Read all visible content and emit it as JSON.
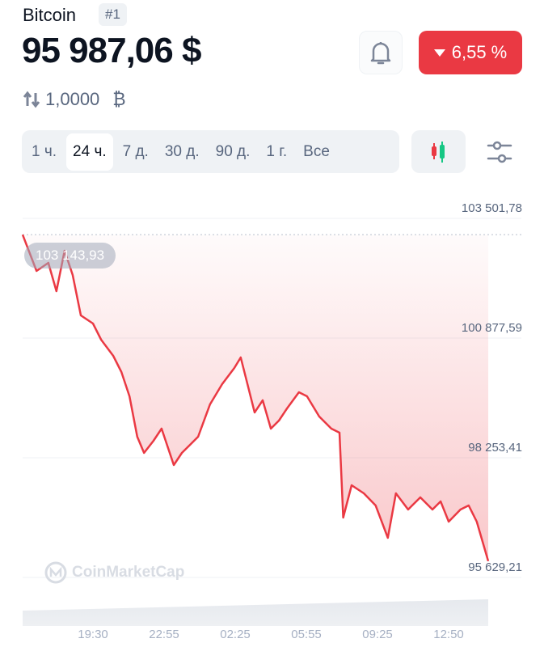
{
  "header": {
    "coin_name": "Bitcoin",
    "rank": "#1",
    "price": "95 987,06 $",
    "change": "6,55 %",
    "change_direction": "down",
    "conversion": "1,0000",
    "conversion_symbol": "₿"
  },
  "tabs": [
    {
      "label": "1 ч.",
      "active": false
    },
    {
      "label": "24 ч.",
      "active": true
    },
    {
      "label": "7 д.",
      "active": false
    },
    {
      "label": "30 д.",
      "active": false
    },
    {
      "label": "90 д.",
      "active": false
    },
    {
      "label": "1 г.",
      "active": false
    },
    {
      "label": "Все",
      "active": false
    }
  ],
  "icons": {
    "bell": "bell-icon",
    "candles": "candlestick-icon",
    "settings": "sliders-icon",
    "convert": "swap-arrows-icon"
  },
  "colors": {
    "down": "#ea3943",
    "up": "#16c784"
  },
  "watermark": "CoinMarketCap",
  "chart_data": {
    "type": "area",
    "start_label": "103 143,93",
    "ylim": [
      95629.21,
      103501.78
    ],
    "y_ticks": [
      {
        "v": 103501.78,
        "label": "103 501,78"
      },
      {
        "v": 100877.59,
        "label": "100 877,59"
      },
      {
        "v": 98253.41,
        "label": "98 253,41"
      },
      {
        "v": 95629.21,
        "label": "95 629,21"
      }
    ],
    "x_ticks": [
      "19:30",
      "22:55",
      "02:25",
      "05:55",
      "09:25",
      "12:50"
    ],
    "grid": true,
    "series": [
      {
        "x": [
          "16:02",
          "16:43",
          "17:18",
          "17:42",
          "18:06",
          "18:30",
          "18:54",
          "19:30",
          "19:54",
          "20:30",
          "20:54",
          "21:18",
          "21:41",
          "22:01",
          "22:29",
          "22:53",
          "23:29",
          "23:53",
          "00:17",
          "00:41",
          "01:16",
          "01:52",
          "02:28",
          "02:47",
          "03:04",
          "03:28",
          "03:52",
          "04:16",
          "04:40",
          "05:04",
          "05:39",
          "06:03",
          "06:39",
          "07:15",
          "07:39",
          "07:50",
          "08:15",
          "08:51",
          "09:26",
          "10:02",
          "10:26",
          "11:02",
          "11:38",
          "12:14",
          "12:38",
          "13:02",
          "13:37",
          "14:01",
          "14:25",
          "14:59"
        ],
        "values": [
          103143.93,
          102349,
          102527,
          101906,
          102793,
          102261,
          101374,
          101197,
          100842,
          100488,
          100133,
          99601,
          98715,
          98360,
          98626,
          98892,
          98094,
          98360,
          98537,
          98715,
          99424,
          99867,
          100222,
          100452,
          99956,
          99247,
          99513,
          98892,
          99069,
          99335,
          99690,
          99601,
          99158,
          98892,
          98803,
          96942,
          97651,
          97474,
          97208,
          96498,
          97474,
          97119,
          97385,
          97119,
          97296,
          96853,
          97119,
          97208,
          96853,
          95987.06
        ]
      }
    ]
  }
}
